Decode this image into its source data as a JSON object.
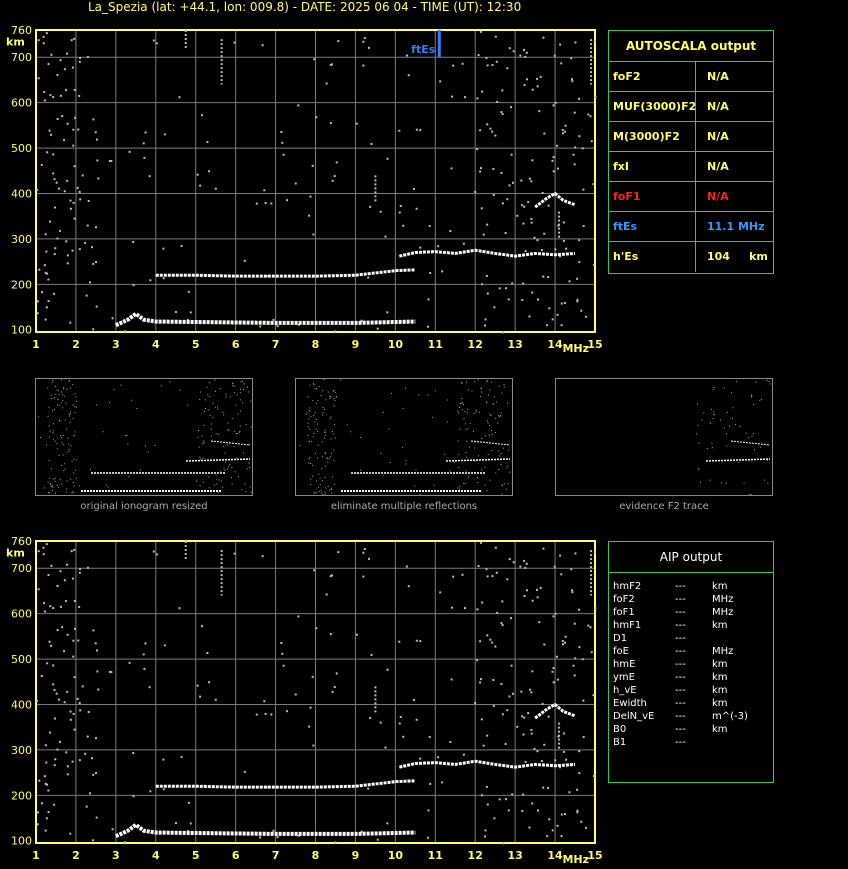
{
  "header": {
    "title": "La_Spezia (lat: +44.1, lon: 009.8) - DATE: 2025 06 04 - TIME (UT): 12:30"
  },
  "colors": {
    "grid": "#7a7a7a",
    "axis": "#ffff66",
    "panel_border": "#3cc83c",
    "trace": "#ffffff",
    "noise": "#bbbbbb",
    "ftes_marker": "#2f7fff",
    "fof1_label": "#ff2020",
    "ftes_label": "#3399ff"
  },
  "chart_data": [
    {
      "type": "scatter",
      "name": "ionogram-top",
      "xlabel": "MHz",
      "ylabel": "km",
      "xlim": [
        1,
        15
      ],
      "ylim": [
        95,
        760
      ],
      "x_ticks": [
        "1",
        "2",
        "3",
        "4",
        "5",
        "6",
        "7",
        "8",
        "9",
        "10",
        "11",
        "12",
        "13",
        "14",
        "15"
      ],
      "y_ticks": [
        "100",
        "200",
        "300",
        "400",
        "500",
        "600",
        "700",
        "760"
      ],
      "grid": true,
      "annotation": {
        "text": "ftEs",
        "x": 11.1
      },
      "traces": [
        {
          "label": "E-region trace",
          "x": [
            3.0,
            3.3,
            3.5,
            3.7,
            4.0,
            5.0,
            6.0,
            7.0,
            8.0,
            9.0,
            10.0,
            10.5
          ],
          "y": [
            110,
            122,
            135,
            122,
            118,
            117,
            116,
            115,
            115,
            115,
            117,
            118
          ]
        },
        {
          "label": "Es second hop",
          "x": [
            4.0,
            5.0,
            6.0,
            7.0,
            8.0,
            9.0,
            9.5,
            10.0,
            10.5
          ],
          "y": [
            220,
            220,
            218,
            218,
            218,
            220,
            225,
            230,
            232
          ]
        },
        {
          "label": "upper trace",
          "x": [
            10.1,
            10.5,
            11.0,
            11.5,
            12.0,
            12.5,
            13.0,
            13.5,
            14.0,
            14.5
          ],
          "y": [
            262,
            270,
            272,
            268,
            275,
            268,
            262,
            268,
            265,
            268
          ]
        },
        {
          "label": "upper cluster",
          "x": [
            13.5,
            13.8,
            14.0,
            14.2,
            14.5
          ],
          "y": [
            370,
            390,
            400,
            385,
            375
          ]
        }
      ]
    },
    {
      "type": "scatter",
      "name": "ionogram-bottom",
      "xlabel": "MHz",
      "ylabel": "km",
      "xlim": [
        1,
        15
      ],
      "ylim": [
        95,
        760
      ],
      "x_ticks": [
        "1",
        "2",
        "3",
        "4",
        "5",
        "6",
        "7",
        "8",
        "9",
        "10",
        "11",
        "12",
        "13",
        "14",
        "15"
      ],
      "y_ticks": [
        "100",
        "200",
        "300",
        "400",
        "500",
        "600",
        "700",
        "760"
      ],
      "grid": true
    }
  ],
  "thumbnails": [
    {
      "caption": "original ionogram resized"
    },
    {
      "caption": "eliminate multiple reflections"
    },
    {
      "caption": "evidence F2 trace"
    }
  ],
  "autoscala": {
    "title": "AUTOSCALA output",
    "rows": [
      {
        "key": "foF2",
        "value": "N/A",
        "color": "#ffff66"
      },
      {
        "key": "MUF(3000)F2",
        "value": "N/A",
        "color": "#ffff66"
      },
      {
        "key": "M(3000)F2",
        "value": "N/A",
        "color": "#ffff66"
      },
      {
        "key": "fxI",
        "value": "N/A",
        "color": "#ffff66"
      },
      {
        "key": "foF1",
        "value": "N/A",
        "color": "#ff2020"
      },
      {
        "key": "ftEs",
        "value": "11.1 MHz",
        "color": "#3399ff"
      },
      {
        "key": "h'Es",
        "value": "104     km",
        "color": "#ffff66"
      }
    ]
  },
  "aip": {
    "title": "AIP output",
    "rows": [
      {
        "key": "hmF2",
        "value": "---",
        "unit": "km"
      },
      {
        "key": "foF2",
        "value": "---",
        "unit": "MHz"
      },
      {
        "key": "foF1",
        "value": "---",
        "unit": "MHz"
      },
      {
        "key": "hmF1",
        "value": "---",
        "unit": "km"
      },
      {
        "key": "D1",
        "value": "---",
        "unit": ""
      },
      {
        "key": "foE",
        "value": "---",
        "unit": "MHz"
      },
      {
        "key": "hmE",
        "value": "---",
        "unit": "km"
      },
      {
        "key": "ymE",
        "value": "---",
        "unit": "km"
      },
      {
        "key": "h_vE",
        "value": "---",
        "unit": "km"
      },
      {
        "key": "Ewidth",
        "value": "---",
        "unit": "km"
      },
      {
        "key": "DelN_vE",
        "value": "---",
        "unit": "m^(-3)"
      },
      {
        "key": "B0",
        "value": "---",
        "unit": "km"
      },
      {
        "key": "B1",
        "value": "---",
        "unit": ""
      }
    ]
  }
}
